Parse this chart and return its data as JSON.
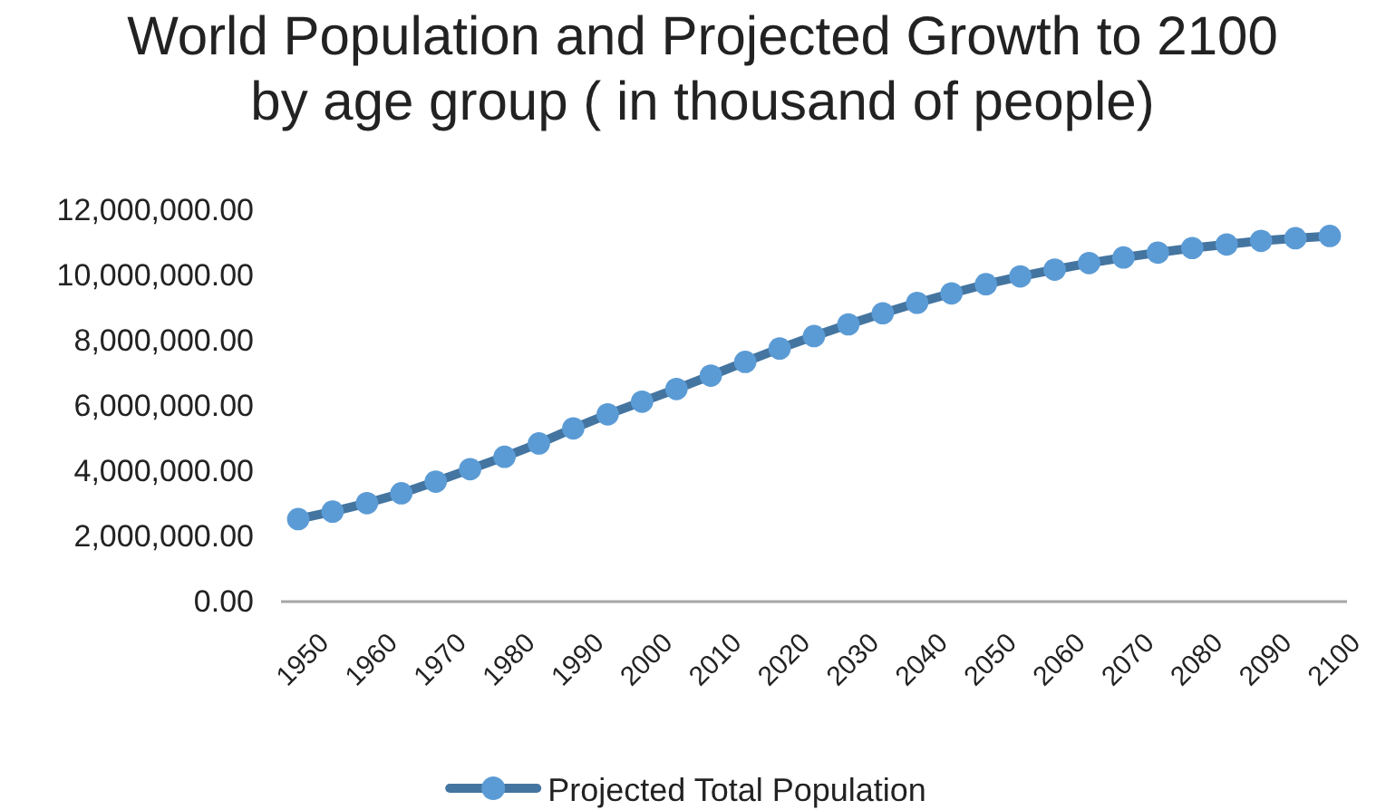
{
  "chart_data": {
    "type": "line",
    "title": "World Population and Projected Growth to 2100 by age group ( in thousand of people)",
    "categories": [
      "1950",
      null,
      "1960",
      null,
      "1970",
      null,
      "1980",
      null,
      "1990",
      null,
      "2000",
      null,
      "2010",
      null,
      "2020",
      null,
      "2030",
      null,
      "2040",
      null,
      "2050",
      null,
      "2060",
      null,
      "2070",
      null,
      "2080",
      null,
      "2090",
      null,
      "2100"
    ],
    "series": [
      {
        "name": "Projected Total Population",
        "color": "#5b9bd5",
        "values": [
          2530000,
          2760000,
          3020000,
          3320000,
          3680000,
          4060000,
          4440000,
          4850000,
          5310000,
          5740000,
          6130000,
          6520000,
          6930000,
          7350000,
          7760000,
          8140000,
          8500000,
          8840000,
          9160000,
          9450000,
          9730000,
          9970000,
          10180000,
          10380000,
          10550000,
          10700000,
          10840000,
          10950000,
          11060000,
          11140000,
          11210000
        ]
      }
    ],
    "ylim": [
      0,
      12000000
    ],
    "yticks": [
      {
        "value": 0,
        "label": "0.00"
      },
      {
        "value": 2000000,
        "label": "2,000,000.00"
      },
      {
        "value": 4000000,
        "label": "4,000,000.00"
      },
      {
        "value": 6000000,
        "label": "6,000,000.00"
      },
      {
        "value": 8000000,
        "label": "8,000,000.00"
      },
      {
        "value": 10000000,
        "label": "10,000,000.00"
      },
      {
        "value": 12000000,
        "label": "12,000,000.00"
      }
    ],
    "grid": false,
    "legend": "bottom",
    "marker": "circle",
    "line_style": "solid"
  }
}
